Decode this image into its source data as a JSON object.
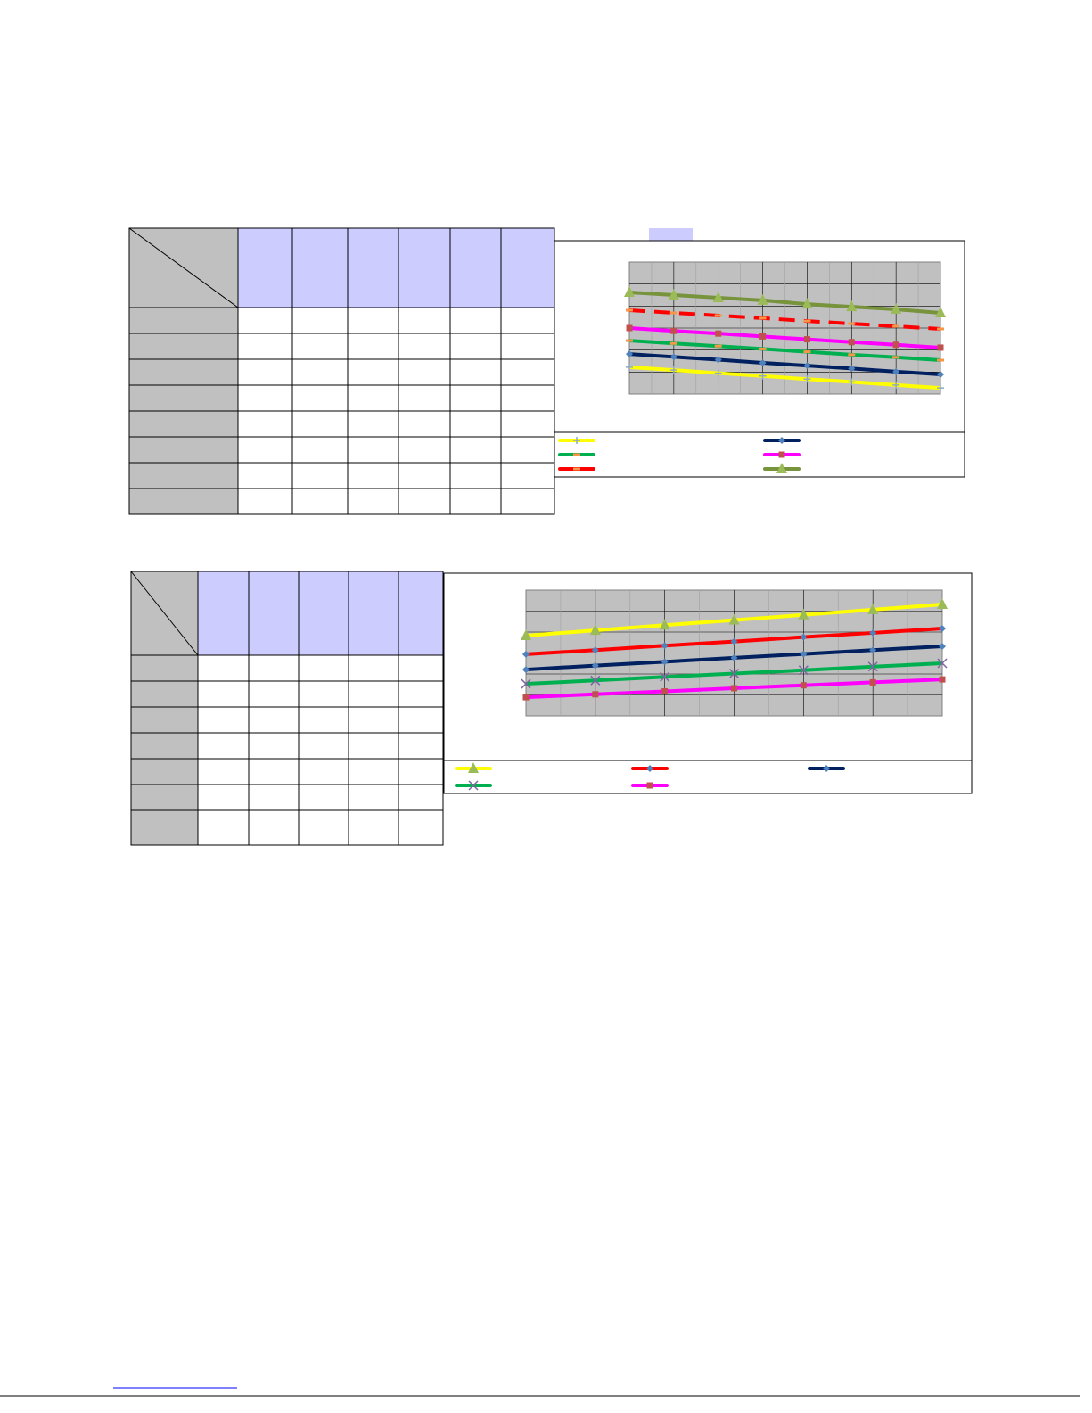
{
  "chart_data": [
    {
      "type": "line",
      "categories": [
        null,
        null,
        null,
        null,
        null,
        null,
        null,
        null
      ],
      "ylim": [
        0,
        6
      ],
      "grid": true,
      "series": [
        {
          "color": "#ffff00",
          "marker": "plus",
          "values": [
            1.22,
            1.09,
            0.95,
            0.82,
            0.68,
            0.55,
            0.41,
            0.28
          ]
        },
        {
          "color": "#002060",
          "marker": "diamond",
          "values": [
            1.82,
            1.69,
            1.56,
            1.42,
            1.29,
            1.16,
            1.02,
            0.89
          ]
        },
        {
          "color": "#00b050",
          "marker": "dash",
          "values": [
            2.43,
            2.3,
            2.18,
            2.05,
            1.92,
            1.79,
            1.67,
            1.54
          ]
        },
        {
          "color": "#ff00ff",
          "marker": "square",
          "values": [
            3.0,
            2.87,
            2.75,
            2.62,
            2.49,
            2.36,
            2.24,
            2.11
          ]
        },
        {
          "color": "#ff0000",
          "marker": "dash",
          "dashed": true,
          "values": [
            3.81,
            3.69,
            3.57,
            3.45,
            3.32,
            3.2,
            3.08,
            2.96
          ]
        },
        {
          "color": "#77933c",
          "marker": "triangle",
          "values": [
            4.62,
            4.5,
            4.38,
            4.26,
            4.09,
            3.97,
            3.85,
            3.69
          ]
        }
      ]
    },
    {
      "type": "line",
      "categories": [
        null,
        null,
        null,
        null,
        null,
        null,
        null
      ],
      "ylim": [
        0,
        6
      ],
      "grid": true,
      "series": [
        {
          "color": "#ffff00",
          "marker": "triangle",
          "values": [
            3.83,
            4.08,
            4.33,
            4.57,
            4.82,
            5.07,
            5.32
          ]
        },
        {
          "color": "#ff0000",
          "marker": "diamond",
          "values": [
            2.94,
            3.14,
            3.35,
            3.55,
            3.76,
            3.96,
            4.17
          ]
        },
        {
          "color": "#002060",
          "marker": "diamond",
          "values": [
            2.21,
            2.4,
            2.58,
            2.77,
            2.95,
            3.14,
            3.32
          ]
        },
        {
          "color": "#00b050",
          "marker": "cross",
          "values": [
            1.53,
            1.69,
            1.86,
            2.02,
            2.18,
            2.35,
            2.51
          ]
        },
        {
          "color": "#ff00ff",
          "marker": "square",
          "values": [
            0.89,
            1.03,
            1.17,
            1.32,
            1.46,
            1.6,
            1.74
          ]
        }
      ]
    }
  ]
}
